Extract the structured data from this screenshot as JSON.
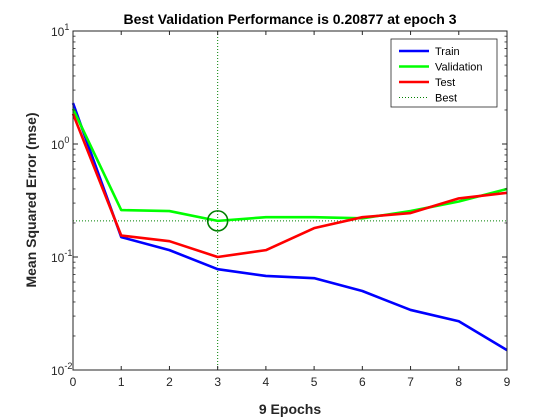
{
  "chart_data": {
    "type": "line",
    "title": "Best Validation Performance is 0.20877 at epoch 3",
    "xlabel": "9 Epochs",
    "ylabel": "Mean Squared Error  (mse)",
    "xlim": [
      0,
      9
    ],
    "ylim": [
      0.01,
      10
    ],
    "yscale": "log",
    "x_ticks": [
      "0",
      "1",
      "2",
      "3",
      "4",
      "5",
      "6",
      "7",
      "8",
      "9"
    ],
    "y_ticks": [
      {
        "value": 0.01,
        "base": "10",
        "exp": "-2"
      },
      {
        "value": 0.1,
        "base": "10",
        "exp": "-1"
      },
      {
        "value": 1,
        "base": "10",
        "exp": "0"
      },
      {
        "value": 10,
        "base": "10",
        "exp": "1"
      }
    ],
    "legend_position": "top-right",
    "x": [
      0,
      1,
      2,
      3,
      4,
      5,
      6,
      7,
      8,
      9
    ],
    "series": [
      {
        "name": "Train",
        "color": "#0000ff",
        "values": [
          2.3,
          0.15,
          0.115,
          0.078,
          0.068,
          0.065,
          0.05,
          0.034,
          0.027,
          0.015
        ]
      },
      {
        "name": "Validation",
        "color": "#00ff00",
        "values": [
          2.05,
          0.26,
          0.255,
          0.20877,
          0.225,
          0.225,
          0.22,
          0.255,
          0.31,
          0.4
        ]
      },
      {
        "name": "Test",
        "color": "#ff0000",
        "values": [
          1.85,
          0.155,
          0.138,
          0.1,
          0.115,
          0.18,
          0.225,
          0.245,
          0.33,
          0.37
        ]
      }
    ],
    "best": {
      "name": "Best",
      "epoch": 3,
      "value": 0.20877,
      "color": "#008000"
    }
  }
}
